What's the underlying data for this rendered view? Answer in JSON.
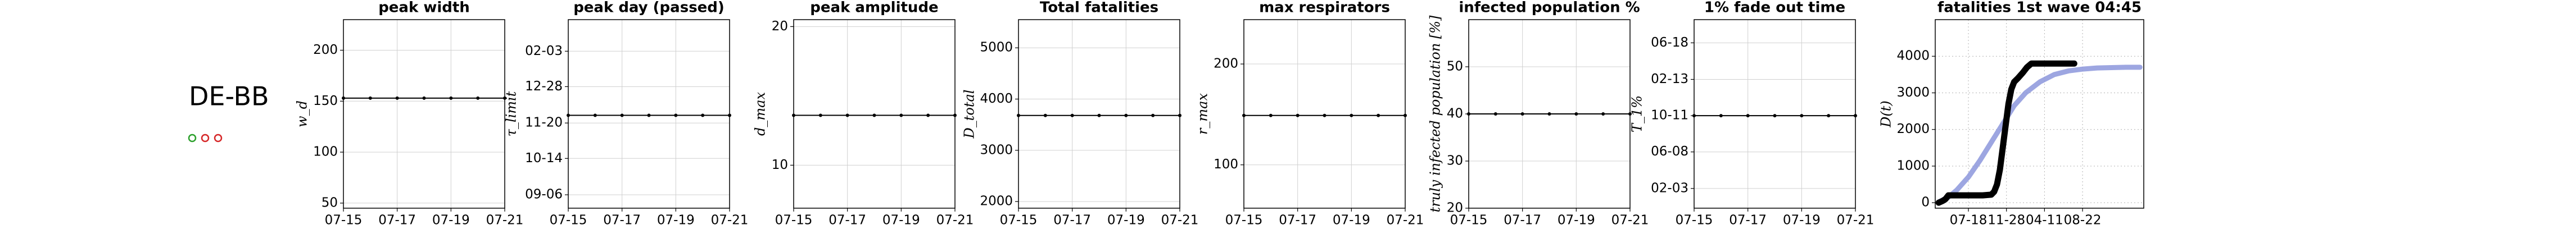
{
  "region": {
    "label": "DE-BB",
    "status_markers": [
      {
        "color": "#2ca02c"
      },
      {
        "color": "#d62728"
      },
      {
        "color": "#d62728"
      }
    ]
  },
  "chart_data": [
    {
      "type": "line",
      "title": "peak width",
      "ylabel": "w_d",
      "marker": "o",
      "color": "#000000",
      "grid": true,
      "x": [
        "07-15",
        "07-16",
        "07-17",
        "07-18",
        "07-19",
        "07-20",
        "07-21"
      ],
      "values": [
        153,
        153,
        153,
        153,
        153,
        153,
        153
      ],
      "xlim": [
        "07-15",
        "07-21"
      ],
      "xticks": [
        "07-15",
        "07-17",
        "07-19",
        "07-21"
      ],
      "ylim": [
        45,
        230
      ],
      "yticks": [
        50,
        100,
        150,
        200
      ]
    },
    {
      "type": "line",
      "title": "peak day (passed)",
      "ylabel": "τ_limit",
      "marker": "o",
      "color": "#000000",
      "grid": true,
      "x": [
        "07-15",
        "07-16",
        "07-17",
        "07-18",
        "07-19",
        "07-20",
        "07-21"
      ],
      "values": [
        333,
        333,
        333,
        333,
        333,
        333,
        333
      ],
      "xlim": [
        "07-15",
        "07-21"
      ],
      "xticks": [
        "07-15",
        "07-17",
        "07-19",
        "07-21"
      ],
      "ylim": [
        236,
        433
      ],
      "yticks": [
        {
          "value": 250,
          "label": "09-06"
        },
        {
          "value": 288,
          "label": "10-14"
        },
        {
          "value": 325,
          "label": "11-20"
        },
        {
          "value": 363,
          "label": "12-28"
        },
        {
          "value": 400,
          "label": "02-03"
        }
      ]
    },
    {
      "type": "line",
      "title": "peak amplitude",
      "ylabel": "d_max",
      "marker": "o",
      "color": "#000000",
      "grid": true,
      "x": [
        "07-15",
        "07-16",
        "07-17",
        "07-18",
        "07-19",
        "07-20",
        "07-21"
      ],
      "values": [
        13.6,
        13.6,
        13.6,
        13.6,
        13.6,
        13.6,
        13.6
      ],
      "xlim": [
        "07-15",
        "07-21"
      ],
      "xticks": [
        "07-15",
        "07-17",
        "07-19",
        "07-21"
      ],
      "ylim": [
        6.9,
        20.5
      ],
      "yticks": [
        10,
        20
      ]
    },
    {
      "type": "line",
      "title": "Total fatalities",
      "ylabel": "D_total",
      "marker": "o",
      "color": "#000000",
      "grid": true,
      "x": [
        "07-15",
        "07-16",
        "07-17",
        "07-18",
        "07-19",
        "07-20",
        "07-21"
      ],
      "values": [
        3680,
        3680,
        3680,
        3680,
        3680,
        3680,
        3680
      ],
      "xlim": [
        "07-15",
        "07-21"
      ],
      "xticks": [
        "07-15",
        "07-17",
        "07-19",
        "07-21"
      ],
      "ylim": [
        1870,
        5550
      ],
      "yticks": [
        2000,
        3000,
        4000,
        5000
      ]
    },
    {
      "type": "line",
      "title": "max respirators",
      "ylabel": "r_max",
      "marker": "o",
      "color": "#000000",
      "grid": true,
      "x": [
        "07-15",
        "07-16",
        "07-17",
        "07-18",
        "07-19",
        "07-20",
        "07-21"
      ],
      "values": [
        149,
        149,
        149,
        149,
        149,
        149,
        149
      ],
      "xlim": [
        "07-15",
        "07-21"
      ],
      "xticks": [
        "07-15",
        "07-17",
        "07-19",
        "07-21"
      ],
      "ylim": [
        57,
        244
      ],
      "yticks": [
        100,
        200
      ]
    },
    {
      "type": "line",
      "title": "infected population %",
      "ylabel": "truly infected population [%]",
      "marker": "o",
      "color": "#000000",
      "grid": true,
      "x": [
        "07-15",
        "07-16",
        "07-17",
        "07-18",
        "07-19",
        "07-20",
        "07-21"
      ],
      "values": [
        40,
        40,
        40,
        40,
        40,
        40,
        40
      ],
      "xlim": [
        "07-15",
        "07-21"
      ],
      "xticks": [
        "07-15",
        "07-17",
        "07-19",
        "07-21"
      ],
      "ylim": [
        20,
        60
      ],
      "yticks": [
        20,
        30,
        40,
        50
      ]
    },
    {
      "type": "line",
      "title": "1% fade out time",
      "ylabel": "T_1%",
      "marker": "o",
      "color": "#000000",
      "grid": true,
      "x": [
        "07-15",
        "07-16",
        "07-17",
        "07-18",
        "07-19",
        "07-20",
        "07-21"
      ],
      "values": [
        285,
        285,
        285,
        285,
        285,
        285,
        285
      ],
      "xlim": [
        "07-15",
        "07-21"
      ],
      "xticks": [
        "07-15",
        "07-17",
        "07-19",
        "07-21"
      ],
      "ylim": [
        -34,
        616
      ],
      "yticks": [
        {
          "value": 34,
          "label": "02-03"
        },
        {
          "value": 160,
          "label": "06-08"
        },
        {
          "value": 285,
          "label": "10-11"
        },
        {
          "value": 410,
          "label": "02-13"
        },
        {
          "value": 536,
          "label": "06-18"
        }
      ]
    },
    {
      "type": "multiline",
      "title": "fatalities 1st wave 04:45",
      "ylabel": "D(t)",
      "grid": true,
      "xlim": [
        84,
        813
      ],
      "xticks": [
        {
          "value": 200,
          "label": "07-18"
        },
        {
          "value": 333,
          "label": "11-28"
        },
        {
          "value": 466,
          "label": "04-11"
        },
        {
          "value": 599,
          "label": "08-22"
        }
      ],
      "ylim": [
        -150,
        5000
      ],
      "yticks": [
        0,
        1000,
        2000,
        3000,
        4000
      ],
      "series": [
        {
          "color": "#8c96dc",
          "x": [
            96,
            130,
            160,
            200,
            240,
            280,
            320,
            360,
            400,
            450,
            500,
            550,
            600,
            650,
            700,
            750,
            800
          ],
          "values": [
            20,
            150,
            350,
            700,
            1150,
            1650,
            2150,
            2650,
            3000,
            3300,
            3500,
            3600,
            3650,
            3680,
            3690,
            3700,
            3700
          ]
        },
        {
          "color": "#000000",
          "x": [
            96,
            110,
            120,
            130,
            150,
            200,
            250,
            280,
            290,
            300,
            310,
            320,
            330,
            340,
            350,
            360,
            373,
            390,
            405,
            420,
            450,
            500,
            550,
            570
          ],
          "values": [
            0,
            50,
            100,
            200,
            200,
            200,
            200,
            220,
            300,
            500,
            900,
            1500,
            2100,
            2700,
            3100,
            3300,
            3400,
            3550,
            3700,
            3800,
            3800,
            3800,
            3800,
            3800
          ]
        }
      ]
    }
  ]
}
